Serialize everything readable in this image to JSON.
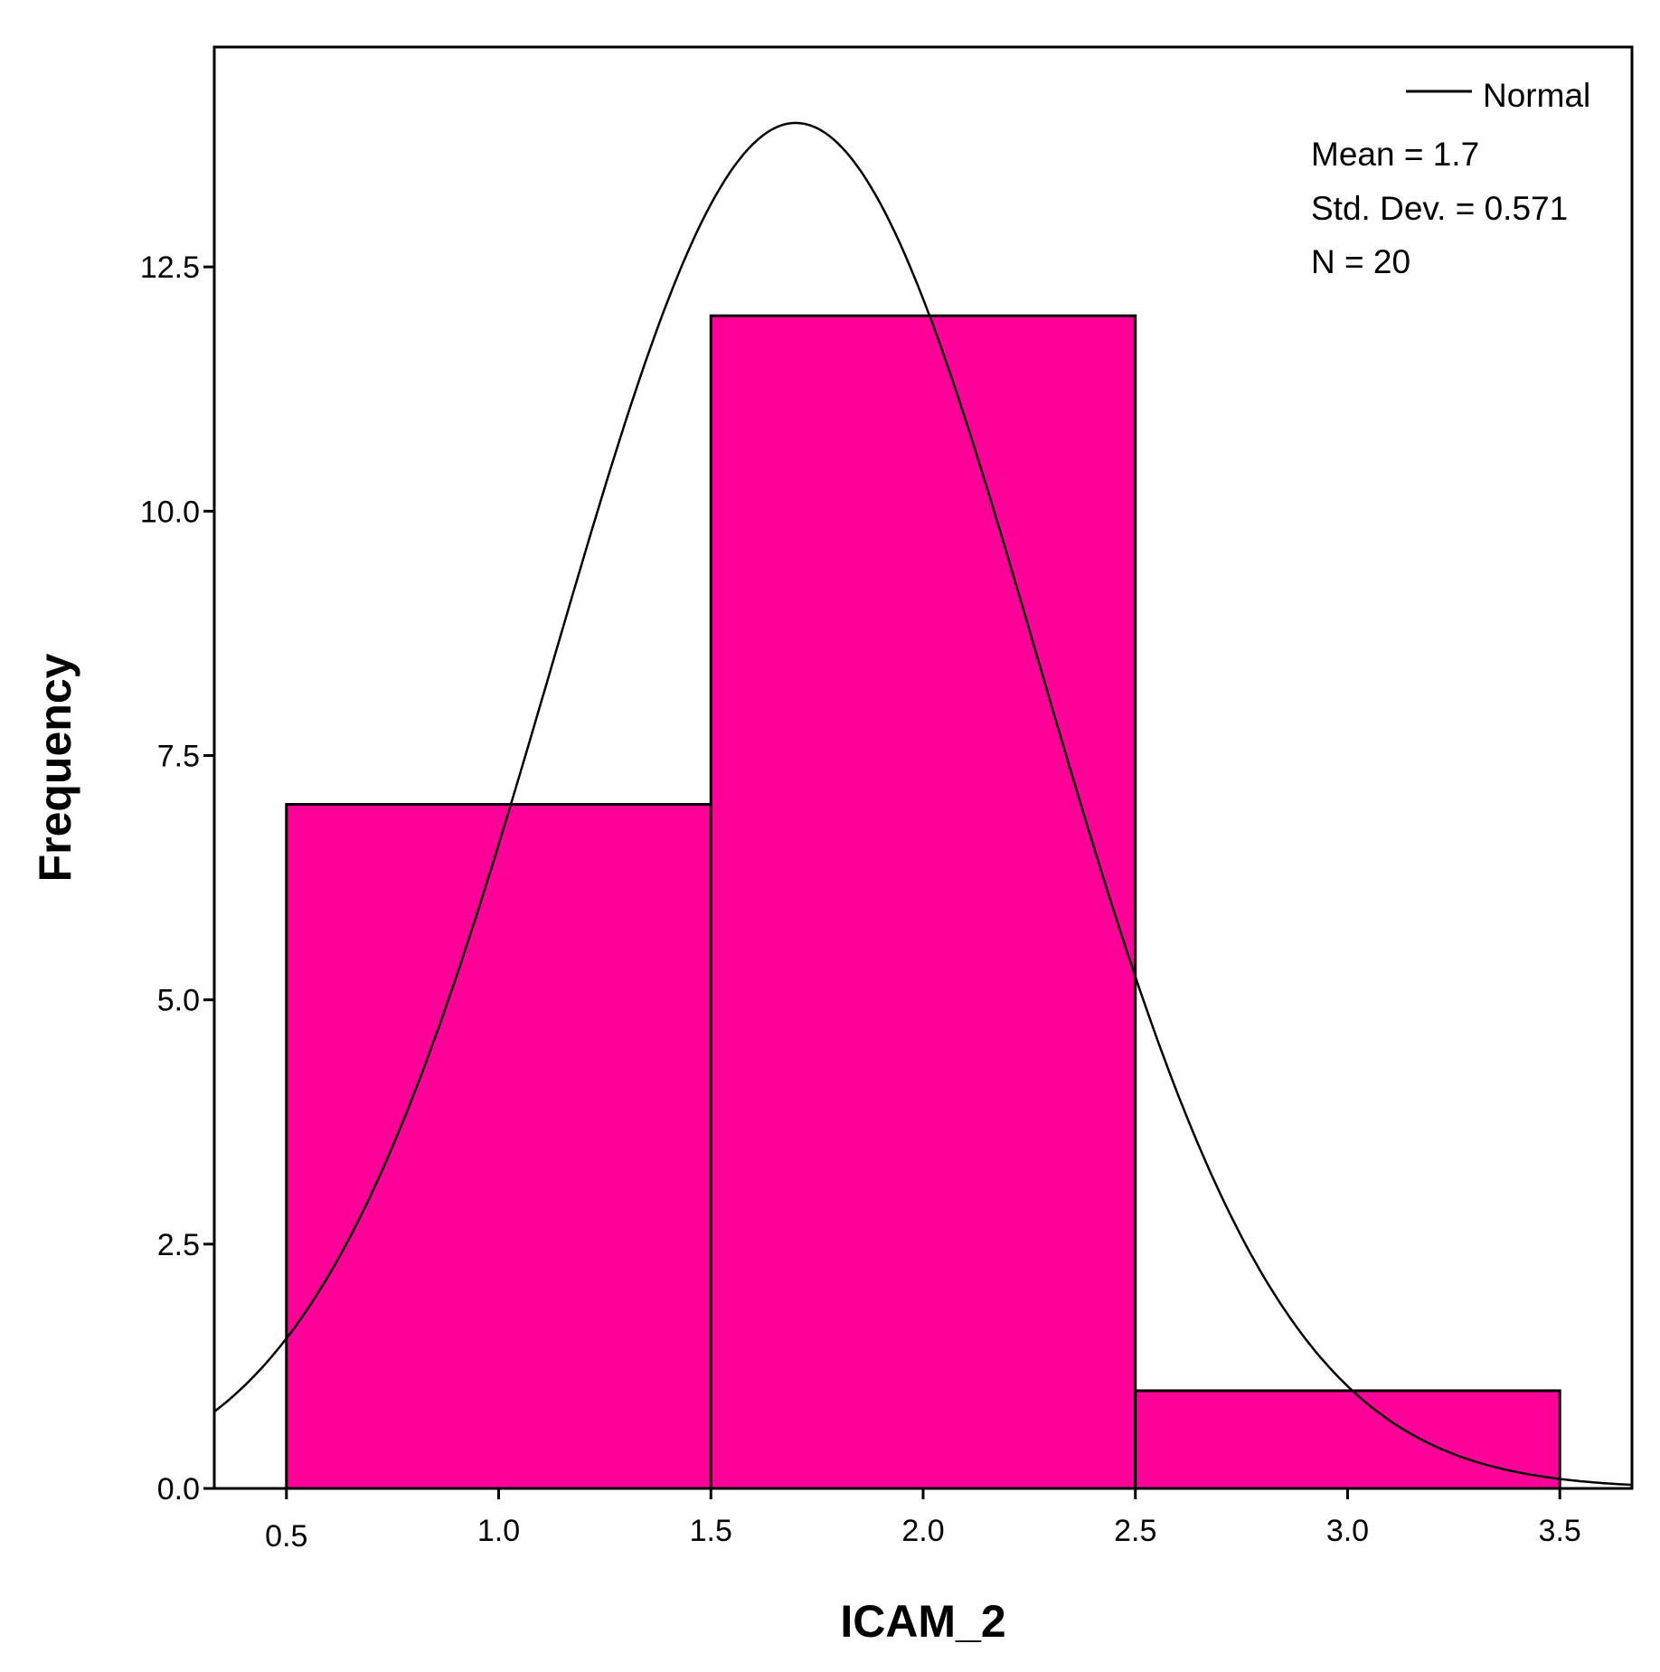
{
  "chart_data": {
    "type": "bar",
    "subtype": "histogram",
    "variable": "ICAM_2",
    "xlabel": "ICAM_2",
    "ylabel": "Frequency",
    "bins": [
      {
        "start": 0.5,
        "end": 1.5,
        "count": 7
      },
      {
        "start": 1.5,
        "end": 2.5,
        "count": 12
      },
      {
        "start": 2.5,
        "end": 3.5,
        "count": 1
      }
    ],
    "xlim": [
      0.33,
      3.67
    ],
    "ylim": [
      0,
      14.75
    ],
    "x_ticks": [
      "0.5",
      "1.0",
      "1.5",
      "2.0",
      "2.5",
      "3.0",
      "3.5"
    ],
    "x_tick_values": [
      0.5,
      1.0,
      1.5,
      2.0,
      2.5,
      3.0,
      3.5
    ],
    "y_ticks": [
      "0.0",
      "2.5",
      "5.0",
      "7.5",
      "10.0",
      "12.5"
    ],
    "y_tick_values": [
      0,
      2.5,
      5,
      7.5,
      10,
      12.5
    ],
    "normal_curve": {
      "mean": 1.7,
      "std_dev": 0.571,
      "n": 20,
      "bin_width": 1.0
    },
    "legend": {
      "curve_label": "Normal",
      "stats": [
        "Mean = 1.7",
        "Std. Dev. = 0.571",
        "N = 20"
      ],
      "placement": "top-right"
    },
    "colors": {
      "bar_fill": "#ff0099",
      "bar_stroke": "#000000",
      "curve": "#000000",
      "axis": "#000000",
      "first_x_tick_label": "#1f4e9a"
    },
    "grid": false
  }
}
